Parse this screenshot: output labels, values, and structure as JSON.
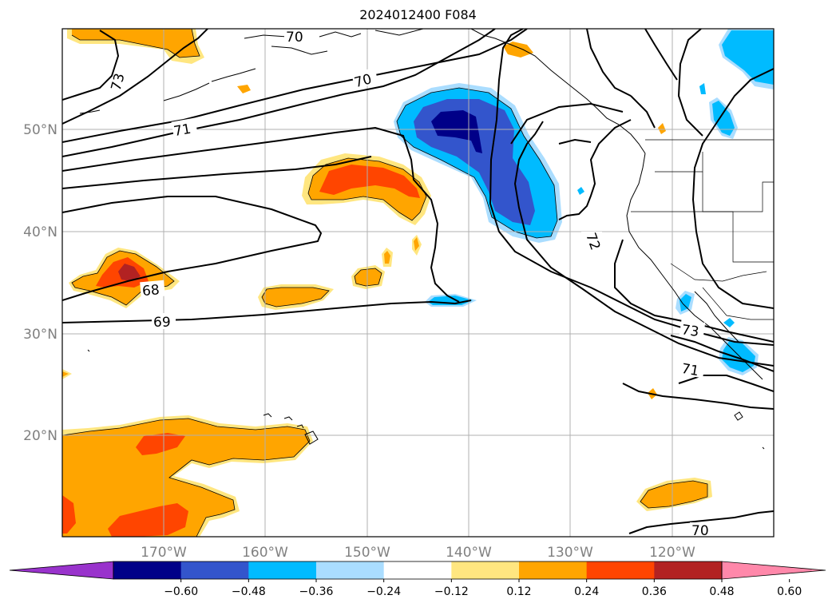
{
  "title": "2024012400 F084",
  "lat_labels": [
    "50°N",
    "40°N",
    "30°N",
    "20°N"
  ],
  "lon_labels": [
    "170°W",
    "160°W",
    "150°W",
    "140°W",
    "130°W",
    "120°W"
  ],
  "contour_labels": [
    "70",
    "73",
    "70",
    "71",
    "72",
    "68",
    "69",
    "73",
    "71",
    "70"
  ],
  "colorbar": {
    "ticks": [
      "−0.60",
      "−0.48",
      "−0.36",
      "−0.24",
      "−0.12",
      "0.12",
      "0.24",
      "0.36",
      "0.48",
      "0.60"
    ],
    "colors": [
      "#9933cc",
      "#000088",
      "#3355cc",
      "#00bbff",
      "#aaddff",
      "#ffffff",
      "#ffe680",
      "#ffa500",
      "#ff4500",
      "#b22222",
      "#ff88aa"
    ]
  },
  "fill_colors": {
    "light_yellow": "#ffe680",
    "orange": "#ffa500",
    "red_orange": "#ff4500",
    "dark_red": "#b22222",
    "light_blue": "#aaddff",
    "cyan": "#00bbff",
    "blue": "#3355cc",
    "navy": "#000088"
  }
}
